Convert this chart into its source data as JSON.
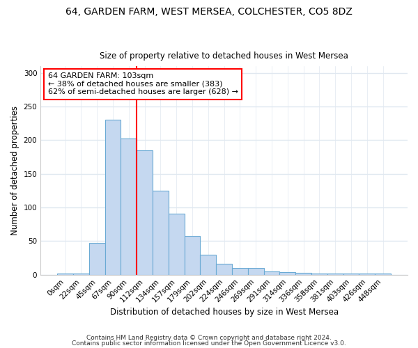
{
  "title": "64, GARDEN FARM, WEST MERSEA, COLCHESTER, CO5 8DZ",
  "subtitle": "Size of property relative to detached houses in West Mersea",
  "xlabel": "Distribution of detached houses by size in West Mersea",
  "ylabel": "Number of detached properties",
  "bar_labels": [
    "0sqm",
    "22sqm",
    "45sqm",
    "67sqm",
    "90sqm",
    "112sqm",
    "134sqm",
    "157sqm",
    "179sqm",
    "202sqm",
    "224sqm",
    "246sqm",
    "269sqm",
    "291sqm",
    "314sqm",
    "336sqm",
    "358sqm",
    "381sqm",
    "403sqm",
    "426sqm",
    "448sqm"
  ],
  "bar_values": [
    2,
    2,
    47,
    230,
    203,
    185,
    125,
    91,
    58,
    30,
    16,
    10,
    10,
    5,
    4,
    3,
    2,
    2,
    2,
    2,
    2
  ],
  "bar_color": "#c5d8f0",
  "bar_edge_color": "#6aaad4",
  "vline_index": 5,
  "vline_color": "red",
  "ylim": [
    0,
    310
  ],
  "yticks": [
    0,
    50,
    100,
    150,
    200,
    250,
    300
  ],
  "annotation_text": "64 GARDEN FARM: 103sqm\n← 38% of detached houses are smaller (383)\n62% of semi-detached houses are larger (628) →",
  "annotation_box_color": "white",
  "annotation_box_edge": "red",
  "footer_line1": "Contains HM Land Registry data © Crown copyright and database right 2024.",
  "footer_line2": "Contains public sector information licensed under the Open Government Licence v3.0.",
  "bg_color": "#ffffff",
  "plot_bg_color": "#ffffff",
  "grid_color": "#e0e8f0"
}
